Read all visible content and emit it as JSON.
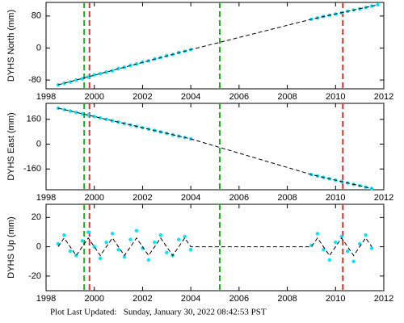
{
  "chart_data": [
    {
      "type": "scatter",
      "y_label": "DYHS North (mm)",
      "xlim": [
        1998,
        2012
      ],
      "xticks": [
        1998,
        2000,
        2002,
        2004,
        2006,
        2008,
        2010,
        2012
      ],
      "ylim": [
        -102,
        114
      ],
      "yticks": [
        -80,
        0,
        80
      ],
      "series": [
        {
          "style": "points",
          "color": "#00e5ff",
          "x": [
            1998.5,
            1998.75,
            1999,
            1999.25,
            1999.5,
            1999.75,
            2000,
            2000.25,
            2000.5,
            2000.75,
            2001,
            2001.25,
            2001.5,
            2001.75,
            2002,
            2002.25,
            2002.5,
            2002.75,
            2003,
            2003.25,
            2003.5,
            2003.75,
            2004,
            2009,
            2009.25,
            2009.5,
            2009.75,
            2010,
            2010.25,
            2010.5,
            2010.75,
            2011,
            2011.25,
            2011.5,
            2011.75
          ],
          "values": [
            -92,
            -88,
            -85,
            -80,
            -77,
            -72,
            -67,
            -64,
            -60,
            -57,
            -51,
            -48,
            -43,
            -40,
            -35,
            -32,
            -27,
            -24,
            -19,
            -16,
            -11,
            -8,
            -4,
            72,
            75,
            79,
            82,
            85,
            88,
            92,
            95,
            98,
            101,
            105,
            108
          ]
        },
        {
          "style": "dashed",
          "color": "#000000",
          "x": [
            1998.5,
            2004,
            2009,
            2011.75
          ],
          "values": [
            -92,
            -4,
            72,
            108
          ]
        }
      ]
    },
    {
      "type": "scatter",
      "y_label": "DYHS East (mm)",
      "xlim": [
        1998,
        2012
      ],
      "xticks": [
        1998,
        2000,
        2002,
        2004,
        2006,
        2008,
        2010,
        2012
      ],
      "ylim": [
        -294,
        263
      ],
      "yticks": [
        -160,
        0,
        160
      ],
      "series": [
        {
          "style": "points",
          "color": "#00e5ff",
          "x": [
            1998.5,
            1998.75,
            1999,
            1999.25,
            1999.5,
            1999.75,
            2000,
            2000.25,
            2000.5,
            2000.75,
            2001,
            2001.25,
            2001.5,
            2001.75,
            2002,
            2002.25,
            2002.5,
            2002.75,
            2003,
            2003.25,
            2003.5,
            2003.75,
            2004,
            2009,
            2009.25,
            2009.5,
            2009.75,
            2010,
            2010.25,
            2010.5,
            2010.75,
            2011,
            2011.25,
            2011.5
          ],
          "values": [
            232,
            223,
            214,
            205,
            196,
            187,
            178,
            169,
            160,
            151,
            142,
            133,
            124,
            115,
            106,
            97,
            88,
            79,
            70,
            61,
            52,
            43,
            34,
            -196,
            -205,
            -214,
            -223,
            -232,
            -241,
            -250,
            -259,
            -268,
            -277,
            -286
          ]
        },
        {
          "style": "dashed",
          "color": "#000000",
          "x": [
            1998.5,
            2004,
            2009,
            2011.5
          ],
          "values": [
            232,
            34,
            -196,
            -286
          ]
        }
      ]
    },
    {
      "type": "scatter",
      "y_label": "DYHS Up (mm)",
      "xlim": [
        1998,
        2012
      ],
      "xticks": [
        1998,
        2000,
        2002,
        2004,
        2006,
        2008,
        2010,
        2012
      ],
      "ylim": [
        -30,
        29
      ],
      "yticks": [
        -20,
        0,
        20
      ],
      "series": [
        {
          "style": "points",
          "color": "#00e5ff",
          "x": [
            1998.5,
            1998.75,
            1999,
            1999.25,
            1999.5,
            1999.75,
            2000,
            2000.25,
            2000.5,
            2000.75,
            2001,
            2001.25,
            2001.5,
            2001.75,
            2002,
            2002.25,
            2002.5,
            2002.75,
            2003,
            2003.25,
            2003.5,
            2003.75,
            2004,
            2009,
            2009.25,
            2009.5,
            2009.75,
            2010,
            2010.25,
            2010.5,
            2010.75,
            2011,
            2011.25,
            2011.5
          ],
          "values": [
            2,
            8,
            -3,
            -6,
            4,
            10,
            0,
            -8,
            3,
            9,
            -2,
            -7,
            5,
            11,
            -1,
            -9,
            3,
            8,
            -4,
            -6,
            5,
            7,
            -2,
            1,
            9,
            -2,
            -9,
            3,
            7,
            -3,
            -10,
            2,
            8,
            -1
          ]
        },
        {
          "style": "dashed",
          "color": "#000000",
          "x": [
            1998.5,
            1998.75,
            1999,
            1999.25,
            1999.5,
            1999.75,
            2000,
            2000.25,
            2000.5,
            2000.75,
            2001,
            2001.25,
            2001.5,
            2001.75,
            2002,
            2002.25,
            2002.5,
            2002.75,
            2003,
            2003.25,
            2003.5,
            2003.75,
            2004,
            2009,
            2009.25,
            2009.5,
            2009.75,
            2010,
            2010.25,
            2010.5,
            2010.75,
            2011,
            2011.25,
            2011.5
          ],
          "values": [
            0,
            6,
            0,
            -6,
            0,
            6,
            0,
            -6,
            0,
            6,
            0,
            -6,
            0,
            6,
            0,
            -6,
            0,
            6,
            0,
            -6,
            0,
            6,
            0,
            0,
            6,
            0,
            -6,
            0,
            6,
            0,
            -6,
            0,
            6,
            0
          ]
        }
      ]
    }
  ],
  "offsets": [
    {
      "x": 1999.58,
      "color": "#22aa22"
    },
    {
      "x": 1999.8,
      "color": "#e03030"
    },
    {
      "x": 2005.2,
      "color": "#22aa22"
    },
    {
      "x": 2010.3,
      "color": "#e03030"
    }
  ],
  "footer": "Plot Last Updated:   Sunday, January 30, 2022 08:42:53 PST"
}
